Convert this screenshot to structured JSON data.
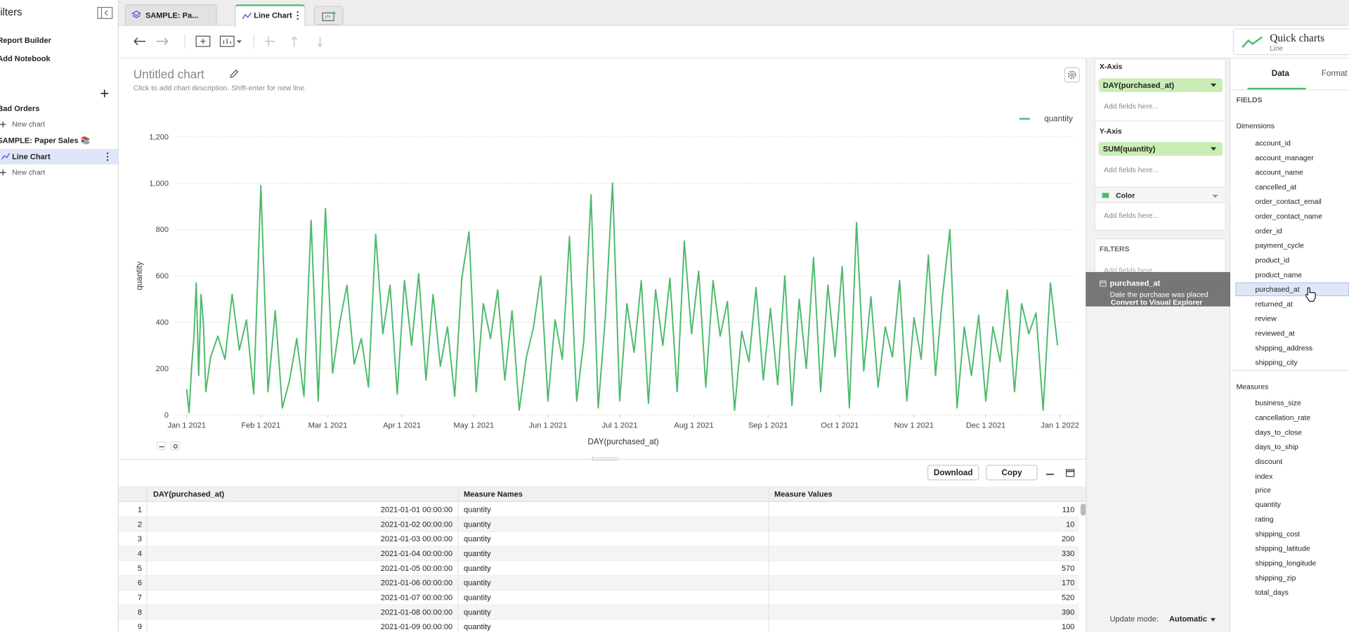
{
  "sidebar": {
    "title": "Filters",
    "report_builder": "Report Builder",
    "add_notebook": "Add Notebook",
    "folder_1": "Bad Orders",
    "new_chart_1": "New chart",
    "folder_2": "SAMPLE: Paper Sales 📚",
    "active_chart": "Line Chart",
    "new_chart_2": "New chart"
  },
  "tabs": [
    "SAMPLE: Pa...",
    "Line Chart"
  ],
  "quick_charts": {
    "title": "Quick charts",
    "subtitle": "Line"
  },
  "chart_data": {
    "type": "line",
    "title": "Untitled chart",
    "subtitle": "Click to add chart description. Shift-enter for new line.",
    "x_label": "DAY(purchased_at)",
    "y_label": "quantity",
    "x": [
      0,
      1,
      2,
      3,
      4,
      5,
      6,
      7,
      8,
      10,
      13,
      16,
      19,
      22,
      25,
      28,
      31,
      34,
      37,
      40,
      43,
      46,
      49,
      52,
      55,
      58,
      61,
      64,
      67,
      70,
      73,
      76,
      79,
      82,
      85,
      88,
      91,
      94,
      97,
      100,
      103,
      106,
      109,
      112,
      115,
      118,
      121,
      124,
      127,
      130,
      133,
      136,
      139,
      142,
      145,
      148,
      151,
      154,
      157,
      160,
      163,
      166,
      169,
      172,
      175,
      178,
      181,
      184,
      187,
      190,
      193,
      196,
      199,
      202,
      205,
      208,
      211,
      214,
      217,
      220,
      223,
      226,
      229,
      232,
      235,
      238,
      241,
      244,
      247,
      250,
      253,
      256,
      259,
      262,
      265,
      268,
      271,
      274,
      277,
      280,
      283,
      286,
      289,
      292,
      295,
      298,
      301,
      304,
      307,
      310,
      313,
      316,
      319,
      322,
      325,
      328,
      331,
      334,
      337,
      340,
      343,
      346,
      349,
      352,
      355,
      358,
      361,
      364
    ],
    "series": [
      {
        "name": "quantity",
        "color": "#4cba6c",
        "values": [
          110,
          10,
          200,
          330,
          570,
          170,
          520,
          390,
          100,
          250,
          340,
          240,
          520,
          280,
          410,
          90,
          990,
          100,
          450,
          30,
          150,
          330,
          80,
          840,
          60,
          890,
          180,
          400,
          560,
          220,
          330,
          120,
          780,
          350,
          560,
          90,
          580,
          300,
          610,
          150,
          520,
          210,
          380,
          80,
          590,
          790,
          100,
          480,
          330,
          540,
          150,
          450,
          20,
          250,
          380,
          600,
          60,
          410,
          240,
          770,
          60,
          320,
          950,
          30,
          420,
          1000,
          60,
          480,
          270,
          580,
          50,
          540,
          300,
          590,
          100,
          750,
          350,
          620,
          120,
          580,
          340,
          490,
          20,
          360,
          230,
          550,
          150,
          460,
          130,
          600,
          40,
          500,
          200,
          680,
          100,
          560,
          250,
          640,
          30,
          830,
          190,
          510,
          120,
          380,
          250,
          580,
          60,
          420,
          240,
          690,
          170,
          520,
          800,
          30,
          380,
          170,
          430,
          60,
          380,
          230,
          540,
          100,
          480,
          350,
          440,
          20,
          570,
          300
        ]
      }
    ],
    "xlim": [
      0,
      365
    ],
    "xticks": [
      {
        "value": 0,
        "label": "Jan 1 2021"
      },
      {
        "value": 31,
        "label": "Feb 1 2021"
      },
      {
        "value": 59,
        "label": "Mar 1 2021"
      },
      {
        "value": 90,
        "label": "Apr 1 2021"
      },
      {
        "value": 120,
        "label": "May 1 2021"
      },
      {
        "value": 151,
        "label": "Jun 1 2021"
      },
      {
        "value": 181,
        "label": "Jul 1 2021"
      },
      {
        "value": 212,
        "label": "Aug 1 2021"
      },
      {
        "value": 243,
        "label": "Sep 1 2021"
      },
      {
        "value": 273,
        "label": "Oct 1 2021"
      },
      {
        "value": 304,
        "label": "Nov 1 2021"
      },
      {
        "value": 334,
        "label": "Dec 1 2021"
      },
      {
        "value": 365,
        "label": "Jan 1 2022"
      }
    ],
    "ylim": [
      0,
      1200
    ],
    "yticks": [
      0,
      200,
      400,
      600,
      800,
      {
        "value": 1000,
        "label": "1,000"
      },
      {
        "value": 1200,
        "label": "1,200"
      }
    ],
    "grid": true,
    "legend": "top-right"
  },
  "table": {
    "actions": [
      "Download",
      "Copy"
    ],
    "columns": [
      "DAY(purchased_at)",
      "Measure Names",
      "Measure Values"
    ],
    "rows": [
      [
        1,
        "2021-01-01 00:00:00",
        "quantity",
        110
      ],
      [
        2,
        "2021-01-02 00:00:00",
        "quantity",
        10
      ],
      [
        3,
        "2021-01-03 00:00:00",
        "quantity",
        200
      ],
      [
        4,
        "2021-01-04 00:00:00",
        "quantity",
        330
      ],
      [
        5,
        "2021-01-05 00:00:00",
        "quantity",
        570
      ],
      [
        6,
        "2021-01-06 00:00:00",
        "quantity",
        170
      ],
      [
        7,
        "2021-01-07 00:00:00",
        "quantity",
        520
      ],
      [
        8,
        "2021-01-08 00:00:00",
        "quantity",
        390
      ],
      [
        9,
        "2021-01-09 00:00:00",
        "quantity",
        100
      ]
    ]
  },
  "config": {
    "x_axis": "X-Axis",
    "x_field": "DAY(purchased_at)",
    "y_axis": "Y-Axis",
    "y_field": "SUM(quantity)",
    "color": "Color",
    "placeholder": "Add fields here...",
    "filters": "FILTERS"
  },
  "tooltip": {
    "title": "purchased_at",
    "description": "Date the purchase was placed",
    "action": "Convert to Visual Explorer"
  },
  "update_mode": {
    "label": "Update mode:",
    "value": "Automatic"
  },
  "fields_panel": {
    "tabs": [
      "Data",
      "Format"
    ],
    "heading": "FIELDS",
    "dimensions_label": "Dimensions",
    "dimensions": [
      "account_id",
      "account_manager",
      "account_name",
      "cancelled_at",
      "order_contact_email",
      "order_contact_name",
      "order_id",
      "payment_cycle",
      "product_id",
      "product_name",
      "purchased_at",
      "returned_at",
      "review",
      "reviewed_at",
      "shipping_address",
      "shipping_city"
    ],
    "measures_label": "Measures",
    "measures": [
      "business_size",
      "cancellation_rate",
      "days_to_close",
      "days_to_ship",
      "discount",
      "index",
      "price",
      "quantity",
      "rating",
      "shipping_cost",
      "shipping_latitude",
      "shipping_longitude",
      "shipping_zip",
      "total_days"
    ]
  }
}
